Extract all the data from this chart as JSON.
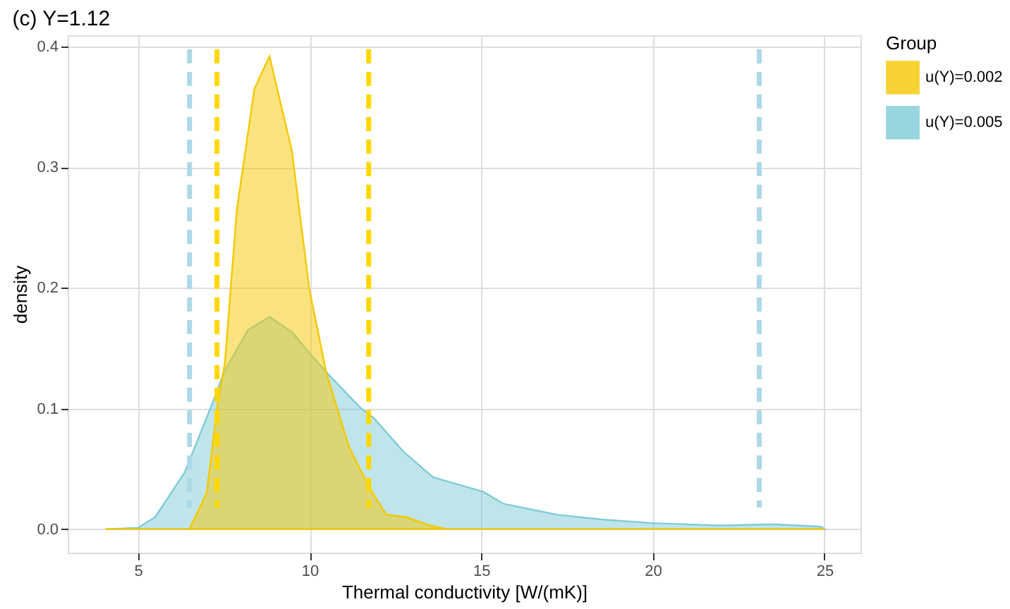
{
  "chart_data": {
    "type": "area",
    "title": "(c) Y=1.12",
    "xlabel": "Thermal conductivity [W/(mK)]",
    "ylabel": "density",
    "legend_title": "Group",
    "legend": "right",
    "grid": true,
    "xlim": [
      2.95,
      26.05
    ],
    "xticks": [
      5,
      10,
      15,
      20,
      25
    ],
    "ylim": [
      -0.0195,
      0.4095
    ],
    "yticks": [
      {
        "value": 0,
        "label": "0.0"
      },
      0.1,
      0.2,
      0.3,
      0.4
    ],
    "series": [
      {
        "name": "u(Y)=0.005",
        "color": "#7fcbd6",
        "x": [
          4.05,
          5.0,
          5.5,
          6.36,
          7.23,
          7.5,
          8.2,
          8.83,
          9.5,
          9.99,
          10.59,
          11.5,
          11.87,
          12.74,
          13.6,
          15.06,
          15.65,
          17.2,
          18.5,
          20.0,
          22.0,
          23.5,
          24.9,
          25.0
        ],
        "values": [
          0,
          0.001,
          0.01,
          0.047,
          0.109,
          0.13,
          0.165,
          0.176,
          0.163,
          0.146,
          0.127,
          0.1,
          0.092,
          0.064,
          0.043,
          0.031,
          0.021,
          0.012,
          0.008,
          0.005,
          0.003,
          0.004,
          0.002,
          0
        ]
      },
      {
        "name": "u(Y)=0.002",
        "color": "#f5c800",
        "x": [
          4.05,
          6.5,
          7.0,
          7.3,
          7.53,
          7.88,
          8.39,
          8.83,
          9.48,
          9.99,
          10.49,
          11.15,
          11.73,
          12.23,
          12.8,
          13.5,
          14.0,
          25.0
        ],
        "values": [
          0,
          0,
          0.03,
          0.1,
          0.138,
          0.265,
          0.365,
          0.392,
          0.314,
          0.199,
          0.129,
          0.068,
          0.035,
          0.012,
          0.01,
          0.003,
          0,
          0
        ]
      }
    ],
    "ref_lines": [
      {
        "axis": "x",
        "value": 6.5,
        "color": "#add8e6",
        "line_style": "dashed"
      },
      {
        "axis": "x",
        "value": 7.3,
        "color": "#ffd700",
        "line_style": "dashed"
      },
      {
        "axis": "x",
        "value": 11.72,
        "color": "#ffd700",
        "line_style": "dashed"
      },
      {
        "axis": "x",
        "value": 23.1,
        "color": "#add8e6",
        "line_style": "dashed"
      }
    ]
  }
}
